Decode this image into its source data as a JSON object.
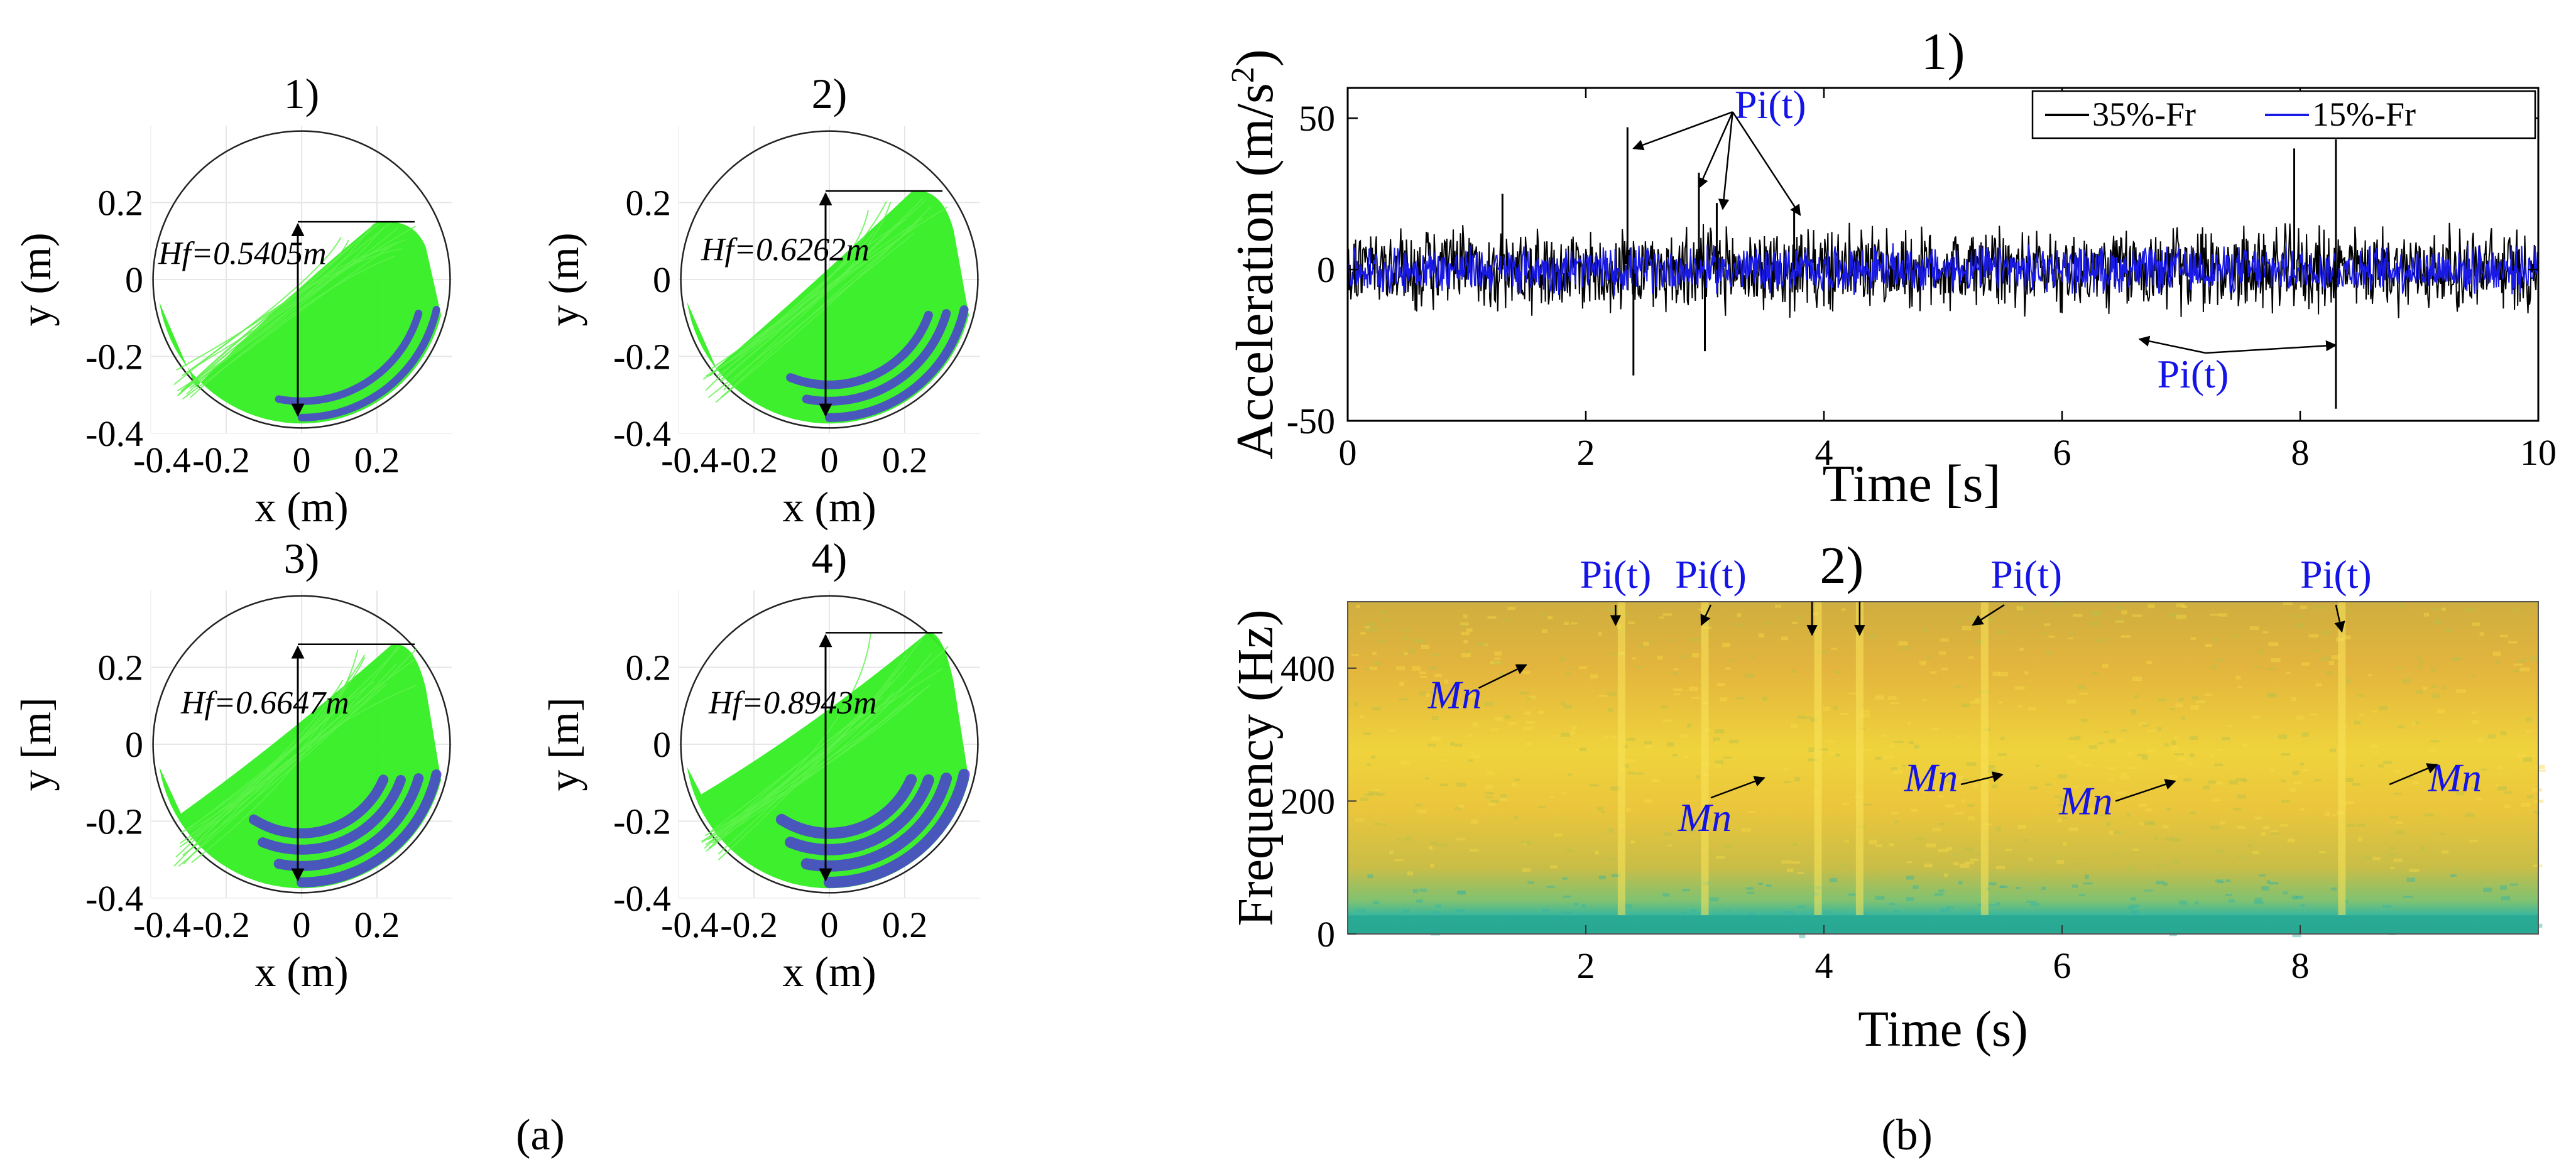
{
  "figure": {
    "caption_a": "(a)",
    "caption_b": "(b)"
  },
  "chart_data": [
    {
      "type": "scatter",
      "panel": "1)",
      "xlabel": "x (m)",
      "ylabel": "y (m)",
      "xticks": [
        "-0.4",
        "-0.2",
        "0",
        "0.2"
      ],
      "yticks": [
        "0.2",
        "0",
        "-0.2",
        "-0.4"
      ],
      "xlim": [
        -0.4,
        0.4
      ],
      "ylim": [
        -0.4,
        0.4
      ],
      "annotation": "Hf=0.5405m",
      "hf": 0.5405,
      "top_y": 0.15,
      "bottom_y": -0.36,
      "series": [
        {
          "color": "#33ee22"
        },
        {
          "color": "#4b3bd6"
        }
      ]
    },
    {
      "type": "scatter",
      "panel": "2)",
      "xlabel": "x (m)",
      "ylabel": "y (m)",
      "xticks": [
        "-0.4",
        "-0.2",
        "0",
        "0.2"
      ],
      "yticks": [
        "0.2",
        "0",
        "-0.2",
        "-0.4"
      ],
      "xlim": [
        -0.4,
        0.4
      ],
      "ylim": [
        -0.4,
        0.4
      ],
      "annotation": "Hf=0.6262m",
      "hf": 0.6262,
      "top_y": 0.23,
      "bottom_y": -0.36,
      "series": [
        {
          "color": "#33ee22"
        },
        {
          "color": "#4b3bd6"
        }
      ]
    },
    {
      "type": "scatter",
      "panel": "3)",
      "xlabel": "x (m)",
      "ylabel": "y [m]",
      "xticks": [
        "-0.4",
        "-0.2",
        "0",
        "0.2"
      ],
      "yticks": [
        "0.2",
        "0",
        "-0.2",
        "-0.4"
      ],
      "xlim": [
        -0.4,
        0.4
      ],
      "ylim": [
        -0.4,
        0.4
      ],
      "annotation": "Hf=0.6647m",
      "hf": 0.6647,
      "top_y": 0.26,
      "bottom_y": -0.36,
      "series": [
        {
          "color": "#33ee22"
        },
        {
          "color": "#4b3bd6"
        }
      ]
    },
    {
      "type": "scatter",
      "panel": "4)",
      "xlabel": "x (m)",
      "ylabel": "y [m]",
      "xticks": [
        "-0.4",
        "-0.2",
        "0",
        "0.2"
      ],
      "yticks": [
        "0.2",
        "0",
        "-0.2",
        "-0.4"
      ],
      "xlim": [
        -0.4,
        0.4
      ],
      "ylim": [
        -0.4,
        0.4
      ],
      "annotation": "Hf=0.8943m",
      "hf": 0.8943,
      "top_y": 0.29,
      "bottom_y": -0.36,
      "series": [
        {
          "color": "#33ee22"
        },
        {
          "color": "#4b3bd6"
        }
      ]
    },
    {
      "type": "line",
      "panel": "1)",
      "xlabel": "Time [s]",
      "ylabel": "Acceleration (m/s",
      "ylabel_sup": "2",
      "ylabel_end": ")",
      "xlim": [
        0,
        10
      ],
      "ylim": [
        -50,
        60
      ],
      "xticks": [
        0,
        2,
        4,
        6,
        8,
        10
      ],
      "yticks": [
        -50,
        0,
        50
      ],
      "legend_position": "top-right",
      "series": [
        {
          "name": "35%-Fr",
          "color": "#000000",
          "amplitude": 15
        },
        {
          "name": "15%-Fr",
          "color": "#1a1ae6",
          "amplitude": 8
        }
      ],
      "spikes": [
        {
          "x": 2.35,
          "y": 47
        },
        {
          "x": 2.4,
          "y": -35
        },
        {
          "x": 2.95,
          "y": 32
        },
        {
          "x": 3.1,
          "y": 22
        },
        {
          "x": 3.75,
          "y": 20
        },
        {
          "x": 7.95,
          "y": 40
        },
        {
          "x": 8.3,
          "y": 43
        },
        {
          "x": 8.3,
          "y": -46
        },
        {
          "x": 3.0,
          "y": -27
        },
        {
          "x": 1.3,
          "y": 25
        }
      ],
      "annotations": [
        {
          "text": "Pi(t)",
          "x": 3.55,
          "y": 50,
          "arrows_to": [
            [
              2.4,
              40
            ],
            [
              2.95,
              27
            ],
            [
              3.15,
              20
            ],
            [
              3.8,
              18
            ]
          ]
        },
        {
          "text": "Pi(t)",
          "x": 7.1,
          "y": -39,
          "arrows_to": [
            [
              6.65,
              -23
            ],
            [
              8.3,
              -25
            ]
          ]
        }
      ]
    },
    {
      "type": "heatmap",
      "panel": "2)",
      "xlabel": "Time (s)",
      "ylabel": "Frequency (Hz)",
      "xlim": [
        0,
        10
      ],
      "ylim": [
        0,
        500
      ],
      "xticks": [
        2,
        4,
        6,
        8
      ],
      "yticks": [
        0,
        200,
        400
      ],
      "colormap": [
        "#f5a940",
        "#f1cf3c",
        "#b9c94a",
        "#2bb8a0"
      ],
      "pi_lines_s": [
        2.3,
        3.0,
        3.95,
        4.3,
        5.35,
        8.35
      ],
      "pi_annotations": [
        {
          "text": "Pi(t)",
          "x": 2.25,
          "y": 530,
          "arrow_to": [
            2.25,
            465
          ]
        },
        {
          "text": "Pi(t)",
          "x": 3.05,
          "y": 530,
          "arrow_to": [
            2.97,
            465
          ]
        },
        {
          "text": "Pi(t)",
          "x": 5.7,
          "y": 530,
          "arrow_to": [
            5.25,
            465
          ]
        },
        {
          "text": "Pi(t)",
          "x": 8.3,
          "y": 530,
          "arrow_to": [
            8.35,
            455
          ]
        }
      ],
      "extra_arrows": [
        [
          [
            3.9,
            500
          ],
          [
            3.9,
            450
          ]
        ],
        [
          [
            4.3,
            500
          ],
          [
            4.3,
            450
          ]
        ]
      ],
      "mn_annotations": [
        {
          "text": "Mn",
          "x": 0.9,
          "y": 340,
          "arrow_from": [
            1.1,
            370
          ],
          "arrow_to": [
            1.5,
            405
          ]
        },
        {
          "text": "Mn",
          "x": 3.0,
          "y": 155,
          "arrow_from": [
            3.05,
            205
          ],
          "arrow_to": [
            3.5,
            235
          ]
        },
        {
          "text": "Mn",
          "x": 4.9,
          "y": 215,
          "arrow_from": [
            5.15,
            225
          ],
          "arrow_to": [
            5.5,
            240
          ]
        },
        {
          "text": "Mn",
          "x": 6.2,
          "y": 180,
          "arrow_from": [
            6.45,
            200
          ],
          "arrow_to": [
            6.95,
            230
          ]
        },
        {
          "text": "Mn",
          "x": 9.3,
          "y": 215,
          "arrow_from": [
            8.75,
            225
          ],
          "arrow_to": [
            9.15,
            255
          ]
        }
      ]
    }
  ]
}
